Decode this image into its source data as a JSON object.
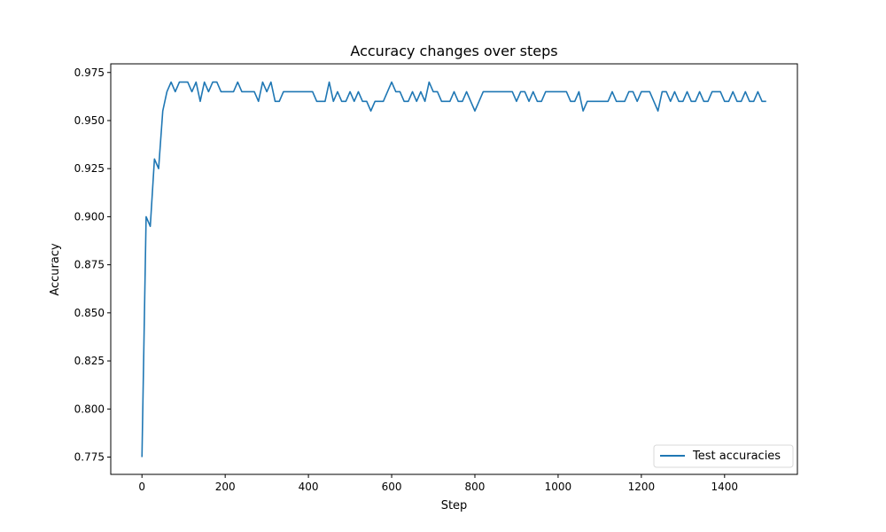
{
  "chart_data": {
    "type": "line",
    "title": "Accuracy changes over steps",
    "xlabel": "Step",
    "ylabel": "Accuracy",
    "xlim": [
      -75,
      1575
    ],
    "ylim": [
      0.766,
      0.9795
    ],
    "xticks": [
      0,
      200,
      400,
      600,
      800,
      1000,
      1200,
      1400
    ],
    "yticks": [
      0.775,
      0.8,
      0.825,
      0.85,
      0.875,
      0.9,
      0.925,
      0.95,
      0.975
    ],
    "grid": false,
    "legend_position": "lower-right",
    "series": [
      {
        "name": "Test accuracies",
        "color": "#1f77b4",
        "x": [
          0,
          10,
          20,
          30,
          40,
          50,
          60,
          70,
          80,
          90,
          100,
          110,
          120,
          130,
          140,
          150,
          160,
          170,
          180,
          190,
          200,
          210,
          220,
          230,
          240,
          250,
          260,
          270,
          280,
          290,
          300,
          310,
          320,
          330,
          340,
          350,
          360,
          370,
          380,
          390,
          400,
          410,
          420,
          430,
          440,
          450,
          460,
          470,
          480,
          490,
          500,
          510,
          520,
          530,
          540,
          550,
          560,
          570,
          580,
          590,
          600,
          610,
          620,
          630,
          640,
          650,
          660,
          670,
          680,
          690,
          700,
          710,
          720,
          730,
          740,
          750,
          760,
          770,
          780,
          790,
          800,
          810,
          820,
          830,
          840,
          850,
          860,
          870,
          880,
          890,
          900,
          910,
          920,
          930,
          940,
          950,
          960,
          970,
          980,
          990,
          1000,
          1010,
          1020,
          1030,
          1040,
          1050,
          1060,
          1070,
          1080,
          1090,
          1100,
          1110,
          1120,
          1130,
          1140,
          1150,
          1160,
          1170,
          1180,
          1190,
          1200,
          1210,
          1220,
          1230,
          1240,
          1250,
          1260,
          1270,
          1280,
          1290,
          1300,
          1310,
          1320,
          1330,
          1340,
          1350,
          1360,
          1370,
          1380,
          1390,
          1400,
          1410,
          1420,
          1430,
          1440,
          1450,
          1460,
          1470,
          1480,
          1490,
          1500
        ],
        "y": [
          0.775,
          0.9,
          0.895,
          0.93,
          0.925,
          0.955,
          0.965,
          0.97,
          0.965,
          0.97,
          0.97,
          0.97,
          0.965,
          0.97,
          0.96,
          0.97,
          0.965,
          0.97,
          0.97,
          0.965,
          0.965,
          0.965,
          0.965,
          0.97,
          0.965,
          0.965,
          0.965,
          0.965,
          0.96,
          0.97,
          0.965,
          0.97,
          0.96,
          0.96,
          0.965,
          0.965,
          0.965,
          0.965,
          0.965,
          0.965,
          0.965,
          0.965,
          0.96,
          0.96,
          0.96,
          0.97,
          0.96,
          0.965,
          0.96,
          0.96,
          0.965,
          0.96,
          0.965,
          0.96,
          0.96,
          0.955,
          0.96,
          0.96,
          0.96,
          0.965,
          0.97,
          0.965,
          0.965,
          0.96,
          0.96,
          0.965,
          0.96,
          0.965,
          0.96,
          0.97,
          0.965,
          0.965,
          0.96,
          0.96,
          0.96,
          0.965,
          0.96,
          0.96,
          0.965,
          0.96,
          0.955,
          0.96,
          0.965,
          0.965,
          0.965,
          0.965,
          0.965,
          0.965,
          0.965,
          0.965,
          0.96,
          0.965,
          0.965,
          0.96,
          0.965,
          0.96,
          0.96,
          0.965,
          0.965,
          0.965,
          0.965,
          0.965,
          0.965,
          0.96,
          0.96,
          0.965,
          0.955,
          0.96,
          0.96,
          0.96,
          0.96,
          0.96,
          0.96,
          0.965,
          0.96,
          0.96,
          0.96,
          0.965,
          0.965,
          0.96,
          0.965,
          0.965,
          0.965,
          0.96,
          0.955,
          0.965,
          0.965,
          0.96,
          0.965,
          0.96,
          0.96,
          0.965,
          0.96,
          0.96,
          0.965,
          0.96,
          0.96,
          0.965,
          0.965,
          0.965,
          0.96,
          0.96,
          0.965,
          0.96,
          0.96,
          0.965,
          0.96,
          0.96,
          0.965,
          0.96,
          0.96
        ]
      }
    ]
  }
}
